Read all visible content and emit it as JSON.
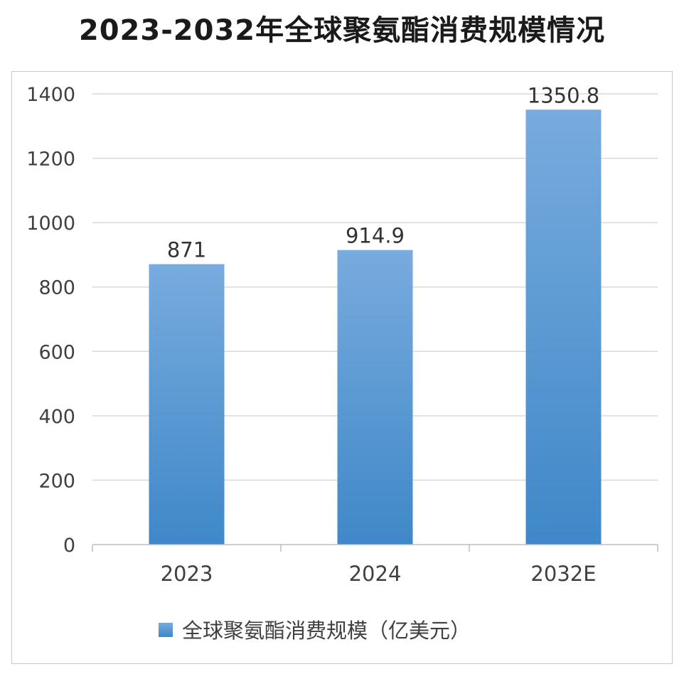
{
  "chart_data": {
    "type": "bar",
    "title": "2023-2032年全球聚氨酯消费规模情况",
    "categories": [
      "2023",
      "2024",
      "2032E"
    ],
    "series": [
      {
        "name": "全球聚氨酯消费规模（亿美元）",
        "values": [
          871,
          914.9,
          1350.8
        ],
        "data_labels": [
          "871",
          "914.9",
          "1350.8"
        ],
        "color": "#5b9bd5"
      }
    ],
    "ylim": [
      0,
      1400
    ],
    "yticks": [
      0,
      200,
      400,
      600,
      800,
      1000,
      1200,
      1400
    ],
    "xlabel": "",
    "ylabel": "",
    "grid": true,
    "legend_position": "bottom"
  }
}
